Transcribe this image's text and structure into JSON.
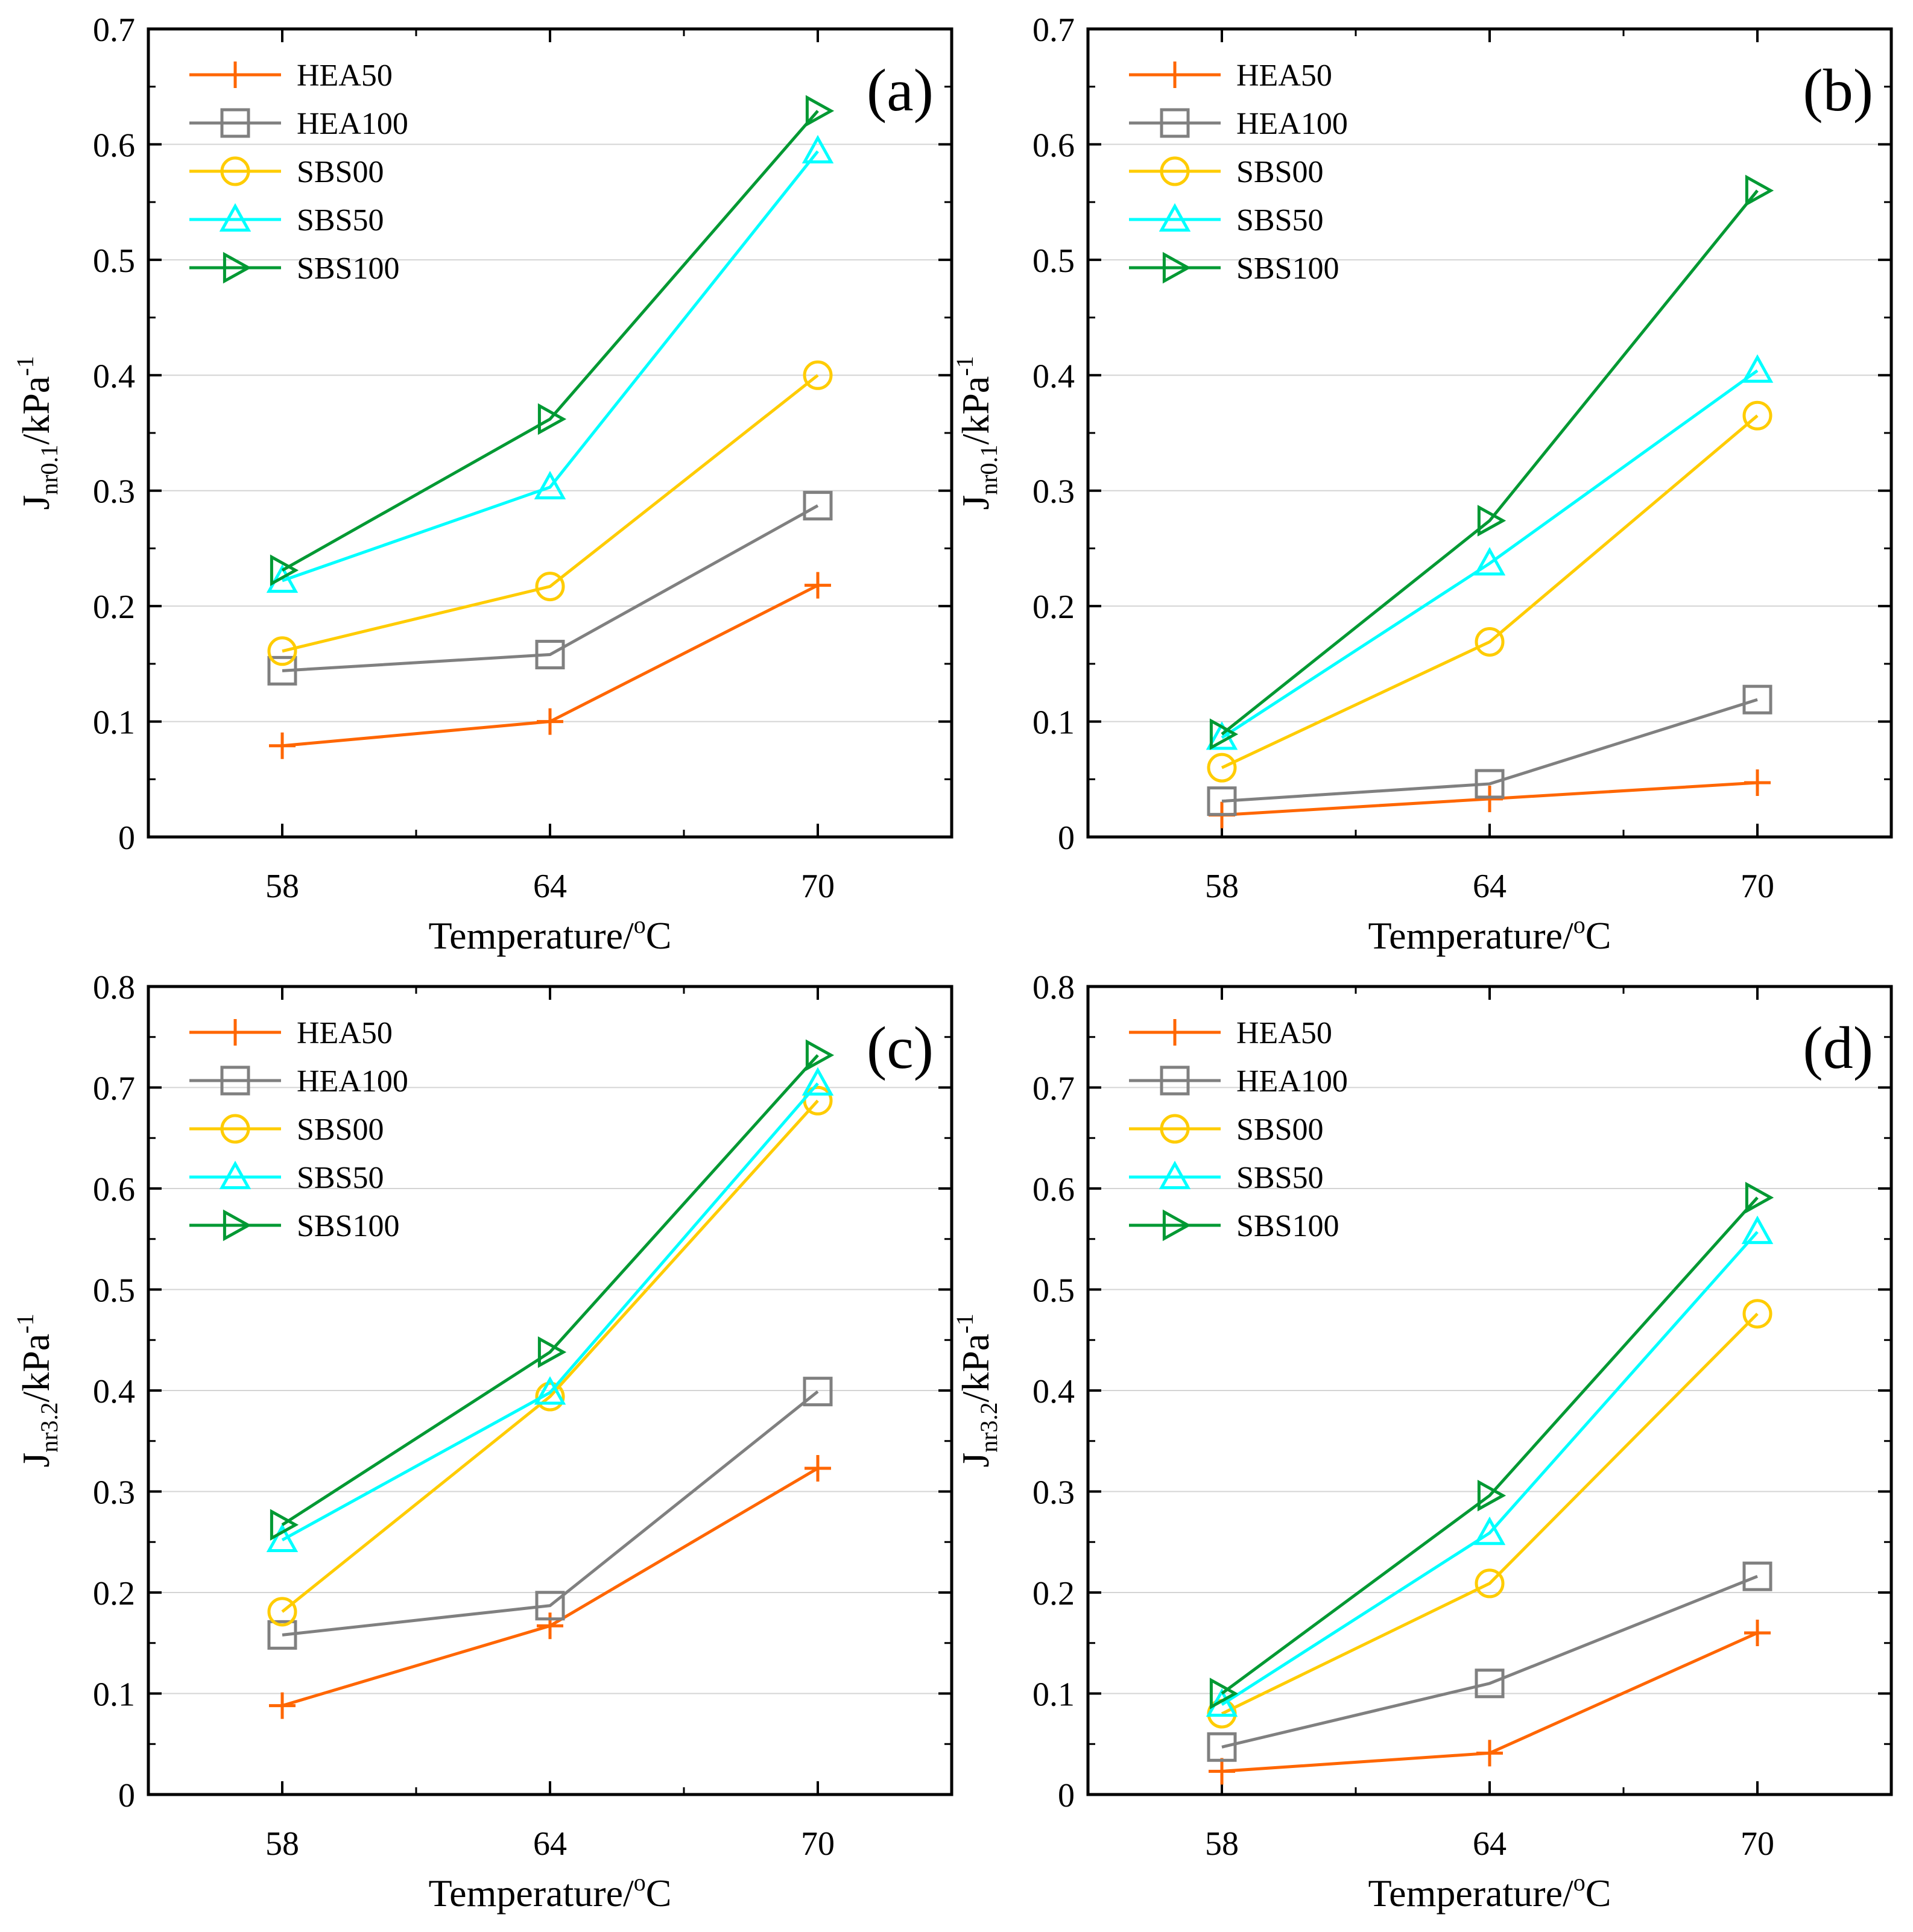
{
  "colors": {
    "HEA50": "#ff6600",
    "HEA100": "#808080",
    "SBS00": "#ffcc00",
    "SBS50": "#00ffff",
    "SBS100": "#009933"
  },
  "legend": [
    "HEA50",
    "HEA100",
    "SBS00",
    "SBS50",
    "SBS100"
  ],
  "markers": {
    "HEA50": "plus",
    "HEA100": "square",
    "SBS00": "circle",
    "SBS50": "triangle-up",
    "SBS100": "triangle-right"
  },
  "chart_data": [
    {
      "type": "line",
      "label": "(a)",
      "xlabel_main": "Temperature/",
      "xlabel_sup": "o",
      "xlabel_tail": "C",
      "ylabel_main": "J",
      "ylabel_sub": "nr0.1",
      "ylabel_mid": "/kPa",
      "ylabel_sup": "-1",
      "x": [
        58,
        64,
        70
      ],
      "xlim": [
        55,
        73
      ],
      "ylim": [
        0,
        0.7
      ],
      "yticks": [
        "0",
        "0.1",
        "0.2",
        "0.3",
        "0.4",
        "0.5",
        "0.6",
        "0.7"
      ],
      "xticks": [
        "58",
        "64",
        "70"
      ],
      "grid": true,
      "legend_position": "top-left",
      "series": [
        {
          "name": "HEA50",
          "values": [
            0.079,
            0.1,
            0.218
          ]
        },
        {
          "name": "HEA100",
          "values": [
            0.144,
            0.158,
            0.287
          ]
        },
        {
          "name": "SBS00",
          "values": [
            0.161,
            0.217,
            0.4
          ]
        },
        {
          "name": "SBS50",
          "values": [
            0.222,
            0.303,
            0.594
          ]
        },
        {
          "name": "SBS100",
          "values": [
            0.231,
            0.362,
            0.629
          ]
        }
      ]
    },
    {
      "type": "line",
      "label": "(b)",
      "xlabel_main": "Temperature/",
      "xlabel_sup": "o",
      "xlabel_tail": "C",
      "ylabel_main": "J",
      "ylabel_sub": "nr0.1",
      "ylabel_mid": "/kPa",
      "ylabel_sup": "-1",
      "x": [
        58,
        64,
        70
      ],
      "xlim": [
        55,
        73
      ],
      "ylim": [
        0,
        0.7
      ],
      "yticks": [
        "0",
        "0.1",
        "0.2",
        "0.3",
        "0.4",
        "0.5",
        "0.6",
        "0.7"
      ],
      "xticks": [
        "58",
        "64",
        "70"
      ],
      "grid": true,
      "legend_position": "top-left",
      "series": [
        {
          "name": "HEA50",
          "values": [
            0.019,
            0.033,
            0.047
          ]
        },
        {
          "name": "HEA100",
          "values": [
            0.031,
            0.046,
            0.119
          ]
        },
        {
          "name": "SBS00",
          "values": [
            0.06,
            0.169,
            0.365
          ]
        },
        {
          "name": "SBS50",
          "values": [
            0.086,
            0.237,
            0.404
          ]
        },
        {
          "name": "SBS100",
          "values": [
            0.089,
            0.274,
            0.56
          ]
        }
      ]
    },
    {
      "type": "line",
      "label": "(c)",
      "xlabel_main": "Temperature/",
      "xlabel_sup": "o",
      "xlabel_tail": "C",
      "ylabel_main": "J",
      "ylabel_sub": "nr3.2",
      "ylabel_mid": "/kPa",
      "ylabel_sup": "-1",
      "x": [
        58,
        64,
        70
      ],
      "xlim": [
        55,
        73
      ],
      "ylim": [
        0,
        0.8
      ],
      "yticks": [
        "0",
        "0.1",
        "0.2",
        "0.3",
        "0.4",
        "0.5",
        "0.6",
        "0.7",
        "0.8"
      ],
      "xticks": [
        "58",
        "64",
        "70"
      ],
      "grid": true,
      "legend_position": "top-left",
      "series": [
        {
          "name": "HEA50",
          "values": [
            0.088,
            0.167,
            0.323
          ]
        },
        {
          "name": "HEA100",
          "values": [
            0.158,
            0.187,
            0.399
          ]
        },
        {
          "name": "SBS00",
          "values": [
            0.181,
            0.394,
            0.687
          ]
        },
        {
          "name": "SBS50",
          "values": [
            0.252,
            0.398,
            0.704
          ]
        },
        {
          "name": "SBS100",
          "values": [
            0.267,
            0.438,
            0.732
          ]
        }
      ]
    },
    {
      "type": "line",
      "label": "(d)",
      "xlabel_main": "Temperature/",
      "xlabel_sup": "o",
      "xlabel_tail": "C",
      "ylabel_main": "J",
      "ylabel_sub": "nr3.2",
      "ylabel_mid": "/kPa",
      "ylabel_sup": "-1",
      "x": [
        58,
        64,
        70
      ],
      "xlim": [
        55,
        73
      ],
      "ylim": [
        0,
        0.8
      ],
      "yticks": [
        "0",
        "0.1",
        "0.2",
        "0.3",
        "0.4",
        "0.5",
        "0.6",
        "0.7",
        "0.8"
      ],
      "xticks": [
        "58",
        "64",
        "70"
      ],
      "grid": true,
      "legend_position": "top-left",
      "series": [
        {
          "name": "HEA50",
          "values": [
            0.023,
            0.041,
            0.16
          ]
        },
        {
          "name": "HEA100",
          "values": [
            0.047,
            0.11,
            0.216
          ]
        },
        {
          "name": "SBS00",
          "values": [
            0.08,
            0.209,
            0.476
          ]
        },
        {
          "name": "SBS50",
          "values": [
            0.089,
            0.259,
            0.557
          ]
        },
        {
          "name": "SBS100",
          "values": [
            0.1,
            0.296,
            0.591
          ]
        }
      ]
    }
  ]
}
